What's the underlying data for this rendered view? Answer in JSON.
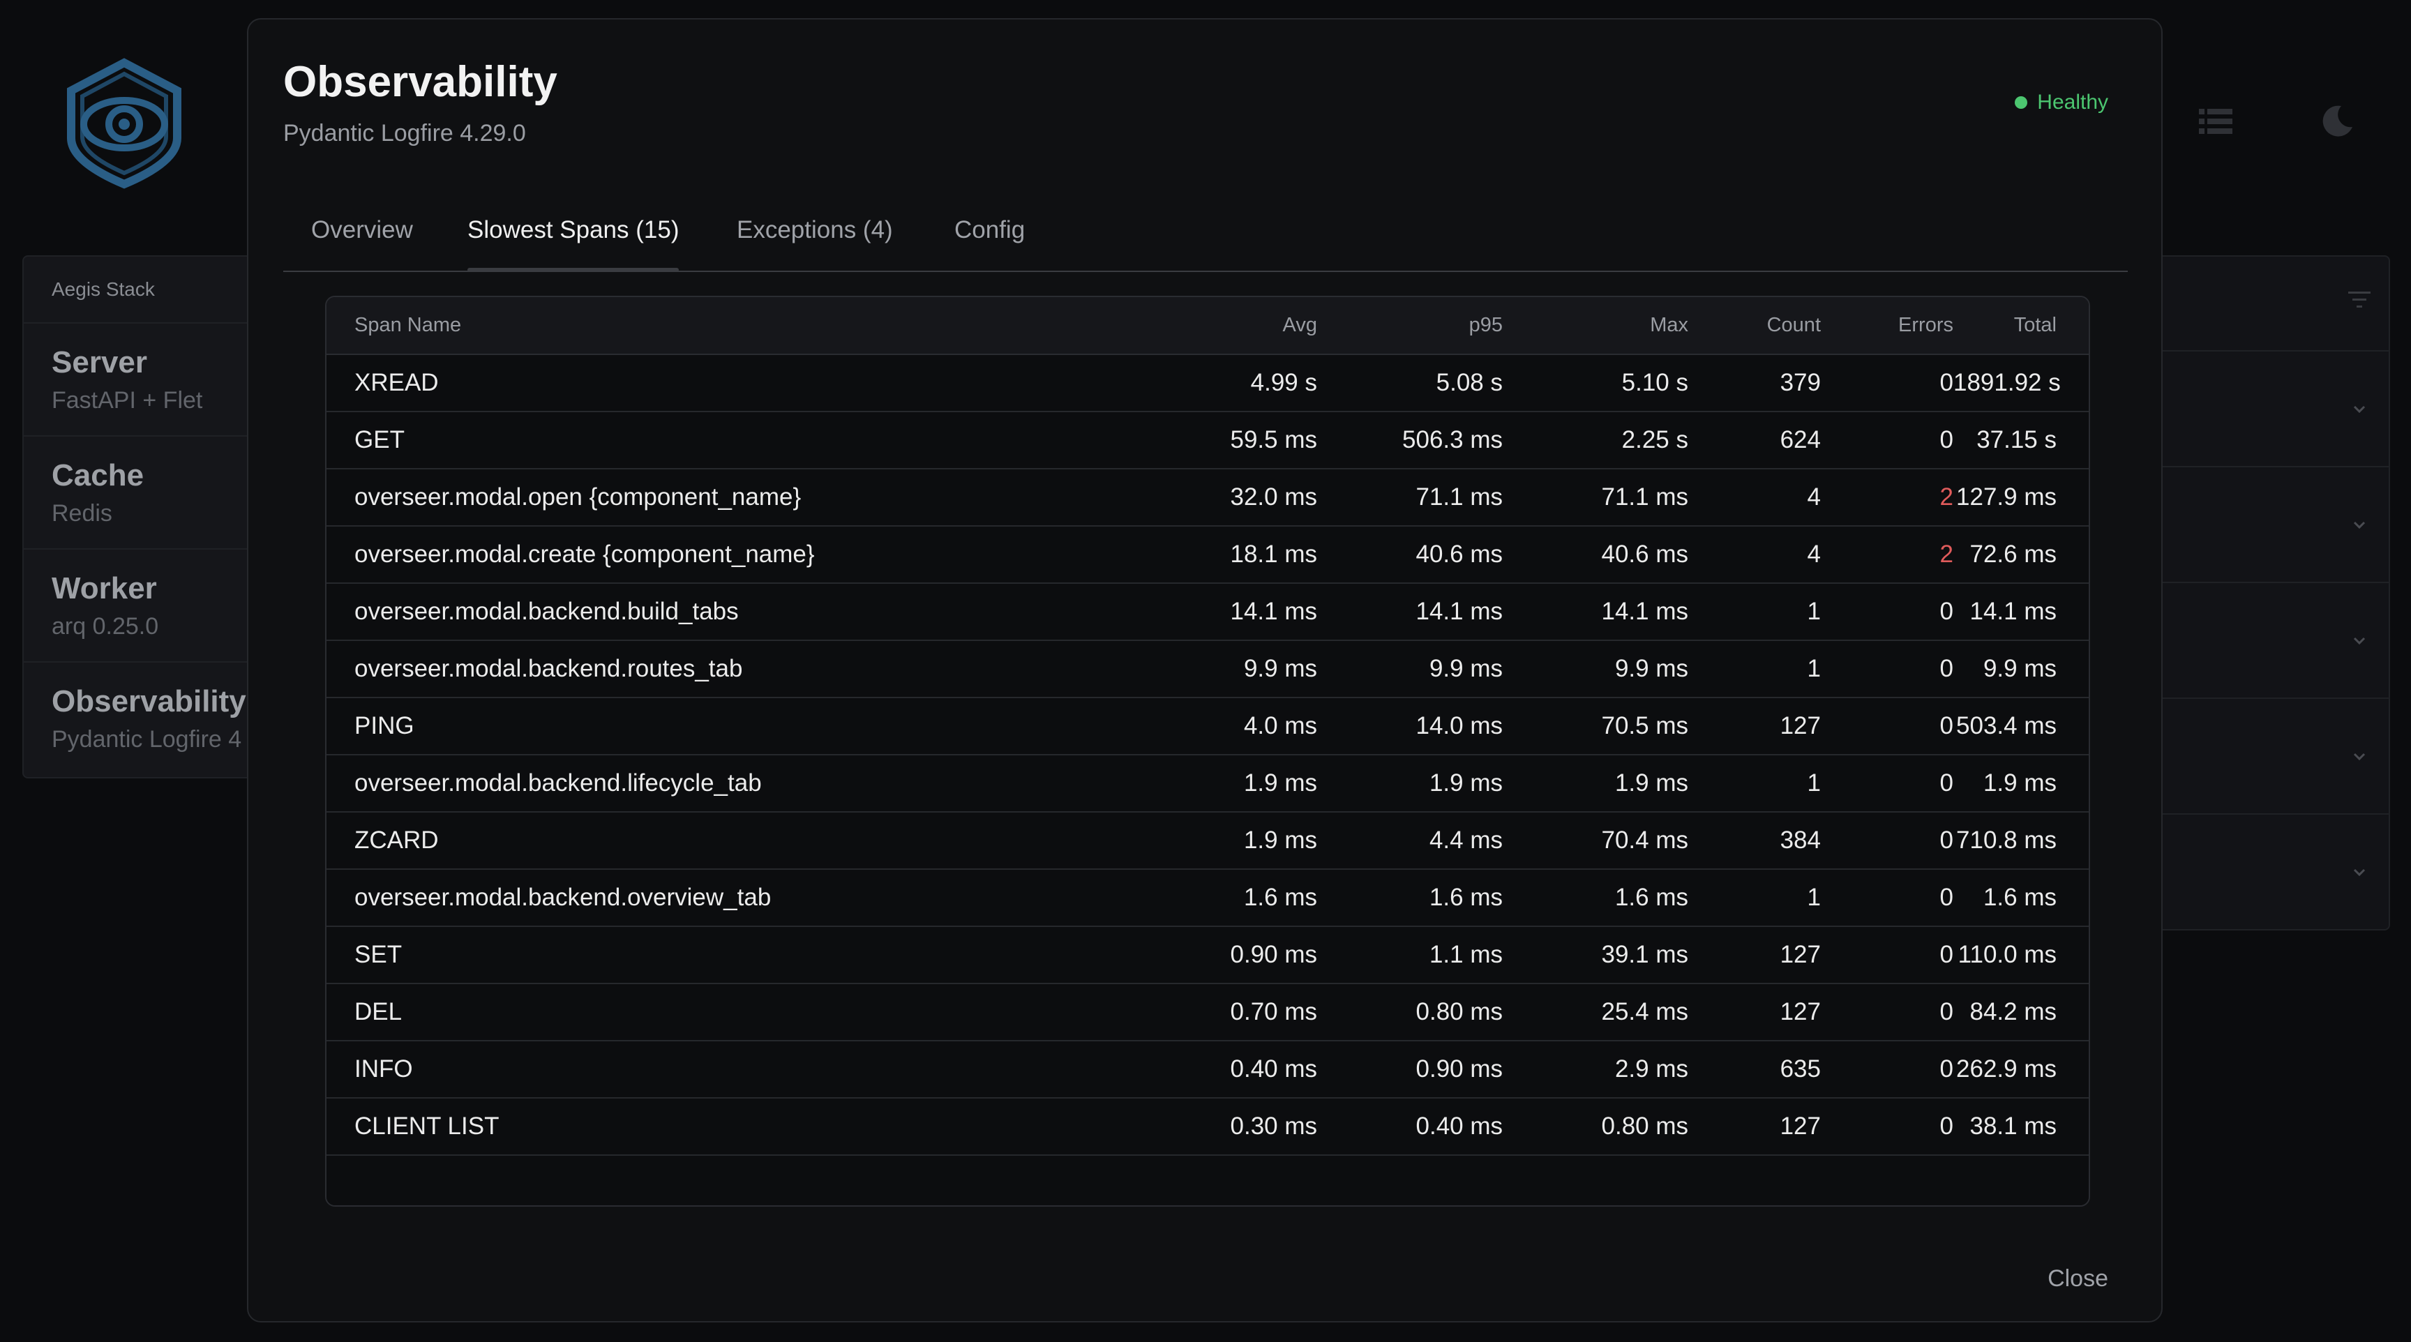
{
  "background": {
    "brand": "Aegis Stack",
    "components": [
      {
        "name": "Server",
        "detail": "FastAPI + Flet"
      },
      {
        "name": "Cache",
        "detail": "Redis"
      },
      {
        "name": "Worker",
        "detail": "arq 0.25.0"
      },
      {
        "name": "Observability",
        "detail": "Pydantic Logfire 4"
      }
    ],
    "icons": [
      "logo-eye-shield",
      "list-icon",
      "moon-icon",
      "filter-icon",
      "chevron-down-icon"
    ]
  },
  "modal": {
    "title": "Observability",
    "subtitle": "Pydantic Logfire 4.29.0",
    "status": {
      "label": "Healthy",
      "color": "#4cc670"
    },
    "tabs": [
      {
        "label": "Overview",
        "active": false
      },
      {
        "label": "Slowest Spans (15)",
        "active": true
      },
      {
        "label": "Exceptions (4)",
        "active": false
      },
      {
        "label": "Config",
        "active": false
      }
    ],
    "close_label": "Close"
  },
  "table": {
    "columns": [
      "Span Name",
      "Avg",
      "p95",
      "Max",
      "Count",
      "Errors",
      "Total"
    ],
    "rows": [
      [
        "XREAD",
        "4.99 s",
        "5.08 s",
        "5.10 s",
        "379",
        "0",
        "1891.92 s"
      ],
      [
        "GET",
        "59.5 ms",
        "506.3 ms",
        "2.25 s",
        "624",
        "0",
        "37.15 s"
      ],
      [
        "overseer.modal.open {component_name}",
        "32.0 ms",
        "71.1 ms",
        "71.1 ms",
        "4",
        "2",
        "127.9 ms"
      ],
      [
        "overseer.modal.create {component_name}",
        "18.1 ms",
        "40.6 ms",
        "40.6 ms",
        "4",
        "2",
        "72.6 ms"
      ],
      [
        "overseer.modal.backend.build_tabs",
        "14.1 ms",
        "14.1 ms",
        "14.1 ms",
        "1",
        "0",
        "14.1 ms"
      ],
      [
        "overseer.modal.backend.routes_tab",
        "9.9 ms",
        "9.9 ms",
        "9.9 ms",
        "1",
        "0",
        "9.9 ms"
      ],
      [
        "PING",
        "4.0 ms",
        "14.0 ms",
        "70.5 ms",
        "127",
        "0",
        "503.4 ms"
      ],
      [
        "overseer.modal.backend.lifecycle_tab",
        "1.9 ms",
        "1.9 ms",
        "1.9 ms",
        "1",
        "0",
        "1.9 ms"
      ],
      [
        "ZCARD",
        "1.9 ms",
        "4.4 ms",
        "70.4 ms",
        "384",
        "0",
        "710.8 ms"
      ],
      [
        "overseer.modal.backend.overview_tab",
        "1.6 ms",
        "1.6 ms",
        "1.6 ms",
        "1",
        "0",
        "1.6 ms"
      ],
      [
        "SET",
        "0.90 ms",
        "1.1 ms",
        "39.1 ms",
        "127",
        "0",
        "110.0 ms"
      ],
      [
        "DEL",
        "0.70 ms",
        "0.80 ms",
        "25.4 ms",
        "127",
        "0",
        "84.2 ms"
      ],
      [
        "INFO",
        "0.40 ms",
        "0.90 ms",
        "2.9 ms",
        "635",
        "0",
        "262.9 ms"
      ],
      [
        "CLIENT LIST",
        "0.30 ms",
        "0.40 ms",
        "0.80 ms",
        "127",
        "0",
        "38.1 ms"
      ]
    ],
    "error_color": "#e05b5b"
  }
}
